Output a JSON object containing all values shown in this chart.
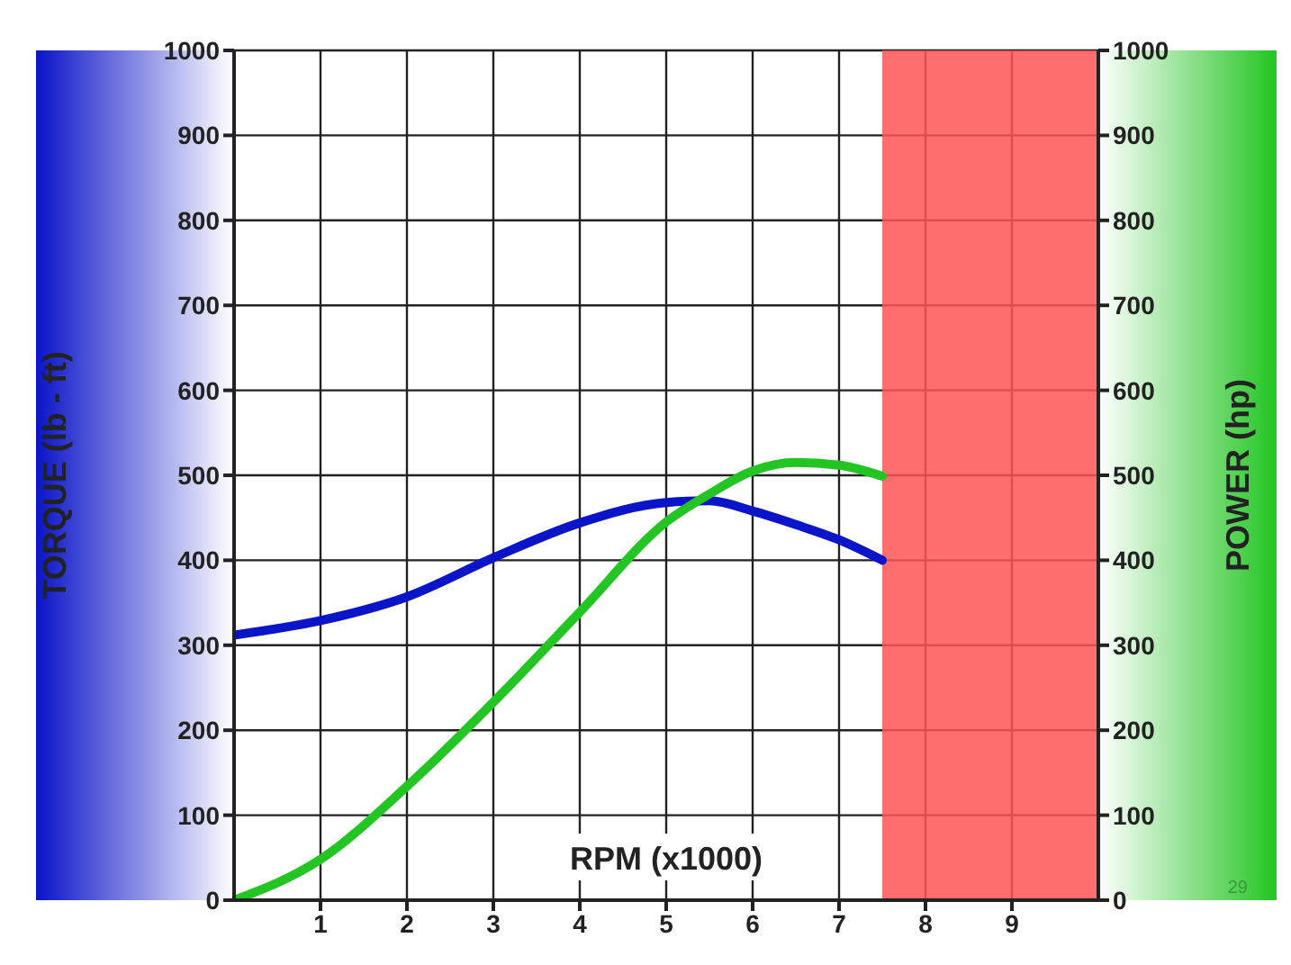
{
  "chart_data": {
    "type": "line",
    "xlabel": "RPM (x1000)",
    "ylabel": "TORQUE (lb - ft)",
    "y2label": "POWER (hp)",
    "x": [
      0,
      1,
      2,
      3,
      4,
      5,
      5.5,
      6,
      6.5,
      7,
      7.5
    ],
    "series": [
      {
        "color": "#0a14c8",
        "axis": "y",
        "values": [
          312,
          329,
          357,
          403,
          444,
          468,
          470,
          458,
          442,
          424,
          400
        ]
      },
      {
        "color": "#22c522",
        "axis": "y2",
        "values": [
          0,
          48,
          134,
          233,
          339,
          445,
          478,
          505,
          515,
          512,
          499
        ]
      }
    ],
    "xlim": [
      0,
      10
    ],
    "xticks": [
      1,
      2,
      3,
      4,
      5,
      6,
      7,
      8,
      9
    ],
    "ylim": [
      0,
      1000
    ],
    "yticks": [
      0,
      100,
      200,
      300,
      400,
      500,
      600,
      700,
      800,
      900,
      1000
    ],
    "y2lim": [
      0,
      1000
    ],
    "y2ticks": [
      0,
      100,
      200,
      300,
      400,
      500,
      600,
      700,
      800,
      900,
      1000
    ],
    "bands": [
      {
        "axis": "x",
        "from": 7.5,
        "to": 10,
        "color": "#ff5555"
      }
    ],
    "grid": true,
    "marker": "none",
    "line_style": "solid",
    "legend": false,
    "annotations": [
      "29"
    ]
  }
}
